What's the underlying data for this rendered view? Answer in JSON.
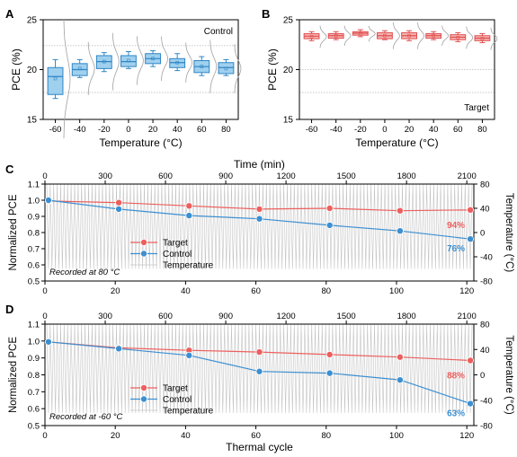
{
  "chart_data": [
    {
      "panel": "A",
      "type": "box",
      "annotation": "Control",
      "xlabel": "Temperature (°C)",
      "ylabel": "PCE (%)",
      "ylim": [
        15,
        25
      ],
      "yticks": [
        15,
        20,
        25
      ],
      "categories": [
        "-60",
        "-40",
        "-20",
        "0",
        "20",
        "40",
        "60",
        "80"
      ],
      "reference_lines": [
        22.4,
        17.7
      ],
      "colors": {
        "fill": "#9fd0ee",
        "stroke": "#2f86c6",
        "curve": "#a0a0a0"
      },
      "boxes": [
        {
          "category": "-60",
          "min": 17.1,
          "q1": 17.5,
          "median": 19.3,
          "q3": 20.2,
          "max": 21.0,
          "mean": 19.1
        },
        {
          "category": "-40",
          "min": 19.2,
          "q1": 19.4,
          "median": 20.0,
          "q3": 20.6,
          "max": 21.0,
          "mean": 20.1
        },
        {
          "category": "-20",
          "min": 19.8,
          "q1": 20.1,
          "median": 20.8,
          "q3": 21.4,
          "max": 21.7,
          "mean": 20.8
        },
        {
          "category": "0",
          "min": 20.1,
          "q1": 20.3,
          "median": 20.8,
          "q3": 21.4,
          "max": 21.8,
          "mean": 20.9
        },
        {
          "category": "20",
          "min": 20.3,
          "q1": 20.6,
          "median": 21.1,
          "q3": 21.6,
          "max": 21.9,
          "mean": 21.1
        },
        {
          "category": "40",
          "min": 19.9,
          "q1": 20.2,
          "median": 20.7,
          "q3": 21.1,
          "max": 21.6,
          "mean": 20.7
        },
        {
          "category": "60",
          "min": 19.4,
          "q1": 19.7,
          "median": 20.3,
          "q3": 20.9,
          "max": 21.3,
          "mean": 20.3
        },
        {
          "category": "80",
          "min": 19.4,
          "q1": 19.6,
          "median": 20.2,
          "q3": 20.7,
          "max": 21.0,
          "mean": 20.1
        }
      ]
    },
    {
      "panel": "B",
      "type": "box",
      "annotation": "Target",
      "xlabel": "Temperature (°C)",
      "ylabel": "PCE (%)",
      "ylim": [
        15,
        25
      ],
      "yticks": [
        15,
        20,
        25
      ],
      "categories": [
        "-60",
        "-40",
        "-20",
        "0",
        "20",
        "40",
        "60",
        "80"
      ],
      "reference_lines": [
        20.0,
        17.7
      ],
      "colors": {
        "fill": "#f6b3b3",
        "stroke": "#e0504f",
        "curve": "#a0a0a0"
      },
      "boxes": [
        {
          "category": "-60",
          "min": 22.9,
          "q1": 23.1,
          "median": 23.35,
          "q3": 23.6,
          "max": 23.8,
          "mean": 23.3
        },
        {
          "category": "-40",
          "min": 23.0,
          "q1": 23.15,
          "median": 23.4,
          "q3": 23.6,
          "max": 23.8,
          "mean": 23.4
        },
        {
          "category": "-20",
          "min": 23.3,
          "q1": 23.45,
          "median": 23.65,
          "q3": 23.8,
          "max": 24.0,
          "mean": 23.6
        },
        {
          "category": "0",
          "min": 23.0,
          "q1": 23.1,
          "median": 23.4,
          "q3": 23.7,
          "max": 23.9,
          "mean": 23.4
        },
        {
          "category": "20",
          "min": 22.9,
          "q1": 23.1,
          "median": 23.4,
          "q3": 23.7,
          "max": 23.9,
          "mean": 23.4
        },
        {
          "category": "40",
          "min": 23.0,
          "q1": 23.15,
          "median": 23.4,
          "q3": 23.6,
          "max": 23.8,
          "mean": 23.4
        },
        {
          "category": "60",
          "min": 22.8,
          "q1": 23.0,
          "median": 23.25,
          "q3": 23.5,
          "max": 23.7,
          "mean": 23.2
        },
        {
          "category": "80",
          "min": 22.7,
          "q1": 22.9,
          "median": 23.15,
          "q3": 23.4,
          "max": 23.6,
          "mean": 23.1
        }
      ]
    },
    {
      "panel": "C",
      "type": "line",
      "xlabel_top": "Time (min)",
      "xlabel_bottom": "",
      "ylabel": "Normalized PCE",
      "ylabel_right": "Temperature (°C)",
      "note": "Recorded at 80 °C",
      "xlim": [
        0,
        122
      ],
      "xticks": [
        0,
        20,
        40,
        60,
        80,
        100,
        120
      ],
      "top_xticks": [
        "0",
        "300",
        "600",
        "900",
        "1200",
        "1500",
        "1800",
        "2100"
      ],
      "ylim": [
        0.5,
        1.1
      ],
      "yticks": [
        "0.5",
        "0.6",
        "0.7",
        "0.8",
        "0.9",
        "1.0",
        "1.1"
      ],
      "ylim_right": [
        -80,
        80
      ],
      "yticks_right": [
        "-80",
        "-40",
        "0",
        "40",
        "80"
      ],
      "temperature_range": [
        -60,
        80
      ],
      "temperature_cycles": 122,
      "legend": [
        "Target",
        "Control",
        "Temperature"
      ],
      "series": [
        {
          "name": "Target",
          "color": "#ec5f5e",
          "x": [
            1,
            21,
            41,
            61,
            81,
            101,
            121
          ],
          "y": [
            0.995,
            0.985,
            0.965,
            0.945,
            0.95,
            0.935,
            0.94
          ],
          "end_label": "94%"
        },
        {
          "name": "Control",
          "color": "#3c8fd1",
          "x": [
            1,
            21,
            41,
            61,
            81,
            101,
            121
          ],
          "y": [
            1.0,
            0.945,
            0.905,
            0.885,
            0.845,
            0.81,
            0.76
          ],
          "end_label": "76%"
        }
      ]
    },
    {
      "panel": "D",
      "type": "line",
      "xlabel_top": "",
      "xlabel_bottom": "Thermal cycle",
      "ylabel": "Normalized PCE",
      "ylabel_right": "Temperature (°C)",
      "note": "Recorded at -60 °C",
      "xlim": [
        0,
        122
      ],
      "xticks": [
        0,
        20,
        40,
        60,
        80,
        100,
        120
      ],
      "top_xticks": [
        "0",
        "300",
        "600",
        "900",
        "1200",
        "1500",
        "1800",
        "2100"
      ],
      "ylim": [
        0.5,
        1.1
      ],
      "yticks": [
        "0.5",
        "0.6",
        "0.7",
        "0.8",
        "0.9",
        "1.0",
        "1.1"
      ],
      "ylim_right": [
        -80,
        80
      ],
      "yticks_right": [
        "-80",
        "-40",
        "0",
        "40",
        "80"
      ],
      "temperature_range": [
        -60,
        80
      ],
      "temperature_cycles": 122,
      "legend": [
        "Target",
        "Control",
        "Temperature"
      ],
      "series": [
        {
          "name": "Target",
          "color": "#ec5f5e",
          "x": [
            1,
            21,
            41,
            61,
            81,
            101,
            121
          ],
          "y": [
            0.995,
            0.96,
            0.945,
            0.935,
            0.92,
            0.905,
            0.885
          ],
          "end_label": "88%"
        },
        {
          "name": "Control",
          "color": "#3c8fd1",
          "x": [
            1,
            21,
            41,
            61,
            81,
            101,
            121
          ],
          "y": [
            0.995,
            0.955,
            0.915,
            0.82,
            0.81,
            0.77,
            0.63
          ],
          "end_label": "63%"
        }
      ]
    }
  ]
}
